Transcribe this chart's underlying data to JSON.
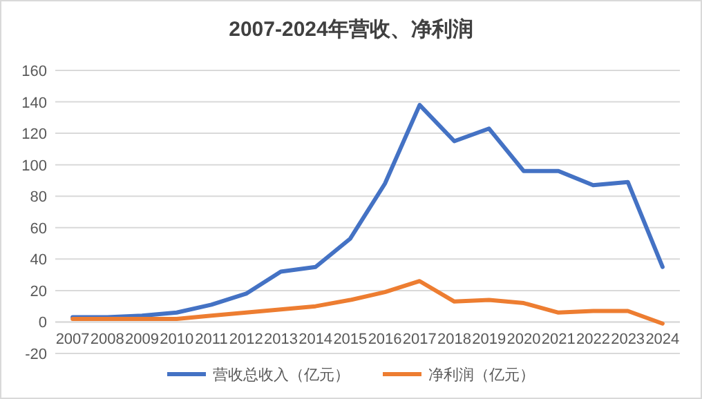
{
  "chart_data": {
    "type": "line",
    "title": "2007-2024年营收、净利润",
    "categories": [
      "2007",
      "2008",
      "2009",
      "2010",
      "2011",
      "2012",
      "2013",
      "2014",
      "2015",
      "2016",
      "2017",
      "2018",
      "2019",
      "2020",
      "2021",
      "2022",
      "2023",
      "2024"
    ],
    "series": [
      {
        "name": "营收总收入（亿元）",
        "color": "#4472c4",
        "values": [
          3,
          3,
          4,
          6,
          11,
          18,
          32,
          35,
          53,
          88,
          138,
          115,
          123,
          96,
          96,
          87,
          89,
          35
        ]
      },
      {
        "name": "净利润（亿元）",
        "color": "#ed7d31",
        "values": [
          2,
          2,
          2,
          2,
          4,
          6,
          8,
          10,
          14,
          19,
          26,
          13,
          14,
          12,
          6,
          7,
          7,
          -1
        ]
      }
    ],
    "ylim": [
      -20,
      160
    ],
    "yticks": [
      -20,
      0,
      20,
      40,
      60,
      80,
      100,
      120,
      140,
      160
    ],
    "grid": "y",
    "legend": "bottom",
    "marker": "none",
    "line_style": "solid"
  }
}
